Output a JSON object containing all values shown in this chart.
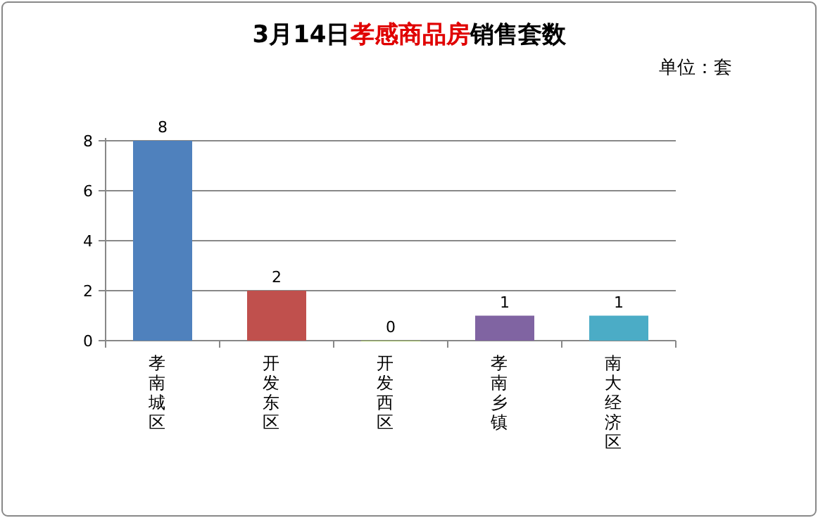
{
  "chart_data": {
    "type": "bar",
    "title": "3月14日**孝感商品房**销售套数",
    "subtitle": "单位：套",
    "categories": [
      "孝南城区",
      "开发东区",
      "开发西区",
      "孝南乡镇",
      "南大经济区"
    ],
    "values": [
      8,
      2,
      0,
      1,
      1
    ],
    "colors": [
      "#4f81bd",
      "#c0504d",
      "#9bbb59",
      "#8064a2",
      "#4bacc6"
    ],
    "ylim": [
      0,
      8
    ],
    "yticks": [
      0,
      2,
      4,
      6,
      8
    ],
    "grid": "y",
    "data_labels": true
  }
}
